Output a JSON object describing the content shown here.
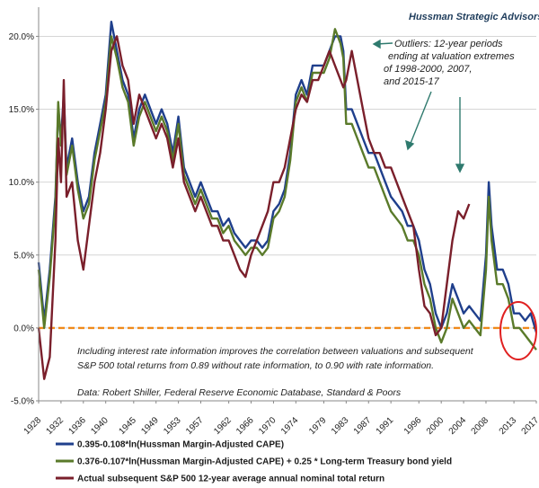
{
  "chart_data": {
    "type": "line",
    "title": "",
    "source_label": "Hussman Strategic Advisors",
    "xlabel": "",
    "ylabel": "",
    "xlim": [
      1928,
      2017
    ],
    "ylim": [
      -0.05,
      0.22
    ],
    "yticks": [
      {
        "value": -0.05,
        "label": "-5.0%"
      },
      {
        "value": 0.0,
        "label": "0.0%"
      },
      {
        "value": 0.05,
        "label": "5.0%"
      },
      {
        "value": 0.1,
        "label": "10.0%"
      },
      {
        "value": 0.15,
        "label": "15.0%"
      },
      {
        "value": 0.2,
        "label": "20.0%"
      }
    ],
    "xticks": [
      {
        "value": 1928,
        "label": "1928"
      },
      {
        "value": 1932,
        "label": "1932"
      },
      {
        "value": 1936,
        "label": "1936"
      },
      {
        "value": 1940,
        "label": "1940"
      },
      {
        "value": 1945,
        "label": "1945"
      },
      {
        "value": 1949,
        "label": "1949"
      },
      {
        "value": 1953,
        "label": "1953"
      },
      {
        "value": 1957,
        "label": "1957"
      },
      {
        "value": 1962,
        "label": "1962"
      },
      {
        "value": 1966,
        "label": "1966"
      },
      {
        "value": 1970,
        "label": "1970"
      },
      {
        "value": 1974,
        "label": "1974"
      },
      {
        "value": 1979,
        "label": "1979"
      },
      {
        "value": 1983,
        "label": "1983"
      },
      {
        "value": 1987,
        "label": "1987"
      },
      {
        "value": 1991,
        "label": "1991"
      },
      {
        "value": 1996,
        "label": "1996"
      },
      {
        "value": 2000,
        "label": "2000"
      },
      {
        "value": 2004,
        "label": "2004"
      },
      {
        "value": 2008,
        "label": "2008"
      },
      {
        "value": 2013,
        "label": "2013"
      },
      {
        "value": 2017,
        "label": "2017"
      }
    ],
    "grid": "horizontal",
    "reference_line": {
      "value": 0.0,
      "color": "#f08a1a",
      "style": "dashed"
    },
    "legend": "bottom",
    "series": [
      {
        "name": "0.395-0.108*ln(Hussman Margin-Adjusted CAPE)",
        "color": "#1f3f8c",
        "x": [
          1928,
          1929,
          1930,
          1931,
          1931.5,
          1932,
          1932.5,
          1933,
          1934,
          1935,
          1936,
          1937,
          1938,
          1939,
          1940,
          1941,
          1942,
          1942.5,
          1943,
          1944,
          1945,
          1946,
          1947,
          1948,
          1949,
          1950,
          1951,
          1952,
          1953,
          1954,
          1955,
          1956,
          1957,
          1958,
          1959,
          1960,
          1961,
          1962,
          1963,
          1964,
          1965,
          1966,
          1967,
          1968,
          1969,
          1970,
          1971,
          1972,
          1973,
          1974,
          1975,
          1976,
          1977,
          1978,
          1979,
          1980,
          1981,
          1982,
          1982.5,
          1983,
          1984,
          1985,
          1986,
          1987,
          1988,
          1989,
          1990,
          1991,
          1992,
          1993,
          1994,
          1995,
          1996,
          1997,
          1998,
          1999,
          2000,
          2001,
          2002,
          2003,
          2004,
          2005,
          2006,
          2007,
          2008,
          2008.5,
          2009,
          2010,
          2011,
          2012,
          2013,
          2014,
          2015,
          2016,
          2017
        ],
        "y": [
          0.045,
          0.005,
          0.04,
          0.09,
          0.15,
          0.13,
          0.16,
          0.11,
          0.13,
          0.1,
          0.08,
          0.09,
          0.12,
          0.14,
          0.16,
          0.21,
          0.19,
          0.18,
          0.17,
          0.16,
          0.13,
          0.15,
          0.16,
          0.15,
          0.14,
          0.15,
          0.14,
          0.12,
          0.145,
          0.11,
          0.1,
          0.09,
          0.1,
          0.09,
          0.08,
          0.08,
          0.07,
          0.075,
          0.065,
          0.06,
          0.055,
          0.06,
          0.06,
          0.055,
          0.06,
          0.08,
          0.085,
          0.095,
          0.12,
          0.16,
          0.17,
          0.16,
          0.18,
          0.18,
          0.18,
          0.19,
          0.2,
          0.2,
          0.19,
          0.15,
          0.15,
          0.14,
          0.13,
          0.12,
          0.12,
          0.11,
          0.1,
          0.09,
          0.085,
          0.08,
          0.07,
          0.07,
          0.06,
          0.04,
          0.03,
          0.01,
          0.0,
          0.01,
          0.03,
          0.02,
          0.01,
          0.015,
          0.01,
          0.005,
          0.05,
          0.1,
          0.07,
          0.04,
          0.04,
          0.03,
          0.01,
          0.01,
          0.005,
          0.01,
          -0.003
        ]
      },
      {
        "name": "0.376-0.107*ln(Hussman Margin-Adjusted CAPE) + 0.25 * Long-term Treasury bond yield",
        "color": "#5a7a2a",
        "x": [
          1928,
          1929,
          1930,
          1931,
          1931.5,
          1932,
          1932.5,
          1933,
          1934,
          1935,
          1936,
          1937,
          1938,
          1939,
          1940,
          1941,
          1942,
          1942.5,
          1943,
          1944,
          1945,
          1946,
          1947,
          1948,
          1949,
          1950,
          1951,
          1952,
          1953,
          1954,
          1955,
          1956,
          1957,
          1958,
          1959,
          1960,
          1961,
          1962,
          1963,
          1964,
          1965,
          1966,
          1967,
          1968,
          1969,
          1970,
          1971,
          1972,
          1973,
          1974,
          1975,
          1976,
          1977,
          1978,
          1979,
          1980,
          1981,
          1982,
          1982.5,
          1983,
          1984,
          1985,
          1986,
          1987,
          1988,
          1989,
          1990,
          1991,
          1992,
          1993,
          1994,
          1995,
          1996,
          1997,
          1998,
          1999,
          2000,
          2001,
          2002,
          2003,
          2004,
          2005,
          2006,
          2007,
          2008,
          2008.5,
          2009,
          2010,
          2011,
          2012,
          2013,
          2014,
          2015,
          2016,
          2017
        ],
        "y": [
          0.04,
          0.0,
          0.035,
          0.085,
          0.155,
          0.125,
          0.155,
          0.105,
          0.125,
          0.095,
          0.075,
          0.085,
          0.115,
          0.135,
          0.155,
          0.2,
          0.185,
          0.175,
          0.165,
          0.155,
          0.125,
          0.145,
          0.155,
          0.145,
          0.135,
          0.145,
          0.135,
          0.115,
          0.14,
          0.105,
          0.095,
          0.085,
          0.095,
          0.085,
          0.075,
          0.075,
          0.065,
          0.07,
          0.06,
          0.055,
          0.05,
          0.055,
          0.055,
          0.05,
          0.055,
          0.075,
          0.08,
          0.09,
          0.115,
          0.155,
          0.165,
          0.155,
          0.175,
          0.175,
          0.175,
          0.185,
          0.205,
          0.195,
          0.185,
          0.14,
          0.14,
          0.13,
          0.12,
          0.11,
          0.11,
          0.1,
          0.09,
          0.08,
          0.075,
          0.07,
          0.06,
          0.06,
          0.05,
          0.03,
          0.02,
          0.0,
          -0.01,
          0.0,
          0.02,
          0.01,
          0.0,
          0.005,
          0.0,
          -0.005,
          0.04,
          0.09,
          0.06,
          0.03,
          0.03,
          0.02,
          0.0,
          0.0,
          -0.005,
          -0.01,
          -0.015
        ]
      },
      {
        "name": "Actual subsequent S&P 500 12-year average annual nominal total return",
        "color": "#7a1f2b",
        "x": [
          1928,
          1929,
          1930,
          1931,
          1931.5,
          1932,
          1932.5,
          1933,
          1934,
          1935,
          1936,
          1937,
          1938,
          1939,
          1940,
          1941,
          1942,
          1942.5,
          1943,
          1944,
          1945,
          1946,
          1947,
          1948,
          1949,
          1950,
          1951,
          1952,
          1953,
          1954,
          1955,
          1956,
          1957,
          1958,
          1959,
          1960,
          1961,
          1962,
          1963,
          1964,
          1965,
          1966,
          1967,
          1968,
          1969,
          1970,
          1971,
          1972,
          1973,
          1974,
          1975,
          1976,
          1977,
          1978,
          1979,
          1980,
          1981,
          1982,
          1982.5,
          1983,
          1984,
          1985,
          1986,
          1987,
          1988,
          1989,
          1990,
          1991,
          1992,
          1993,
          1994,
          1995,
          1996,
          1997,
          1998,
          1999,
          2000,
          2001,
          2002,
          2003,
          2004,
          2005
        ],
        "y": [
          0.0,
          -0.035,
          -0.02,
          0.06,
          0.13,
          0.1,
          0.17,
          0.09,
          0.1,
          0.06,
          0.04,
          0.07,
          0.1,
          0.12,
          0.15,
          0.19,
          0.2,
          0.19,
          0.18,
          0.17,
          0.14,
          0.16,
          0.15,
          0.14,
          0.13,
          0.14,
          0.13,
          0.11,
          0.13,
          0.1,
          0.09,
          0.08,
          0.09,
          0.08,
          0.07,
          0.07,
          0.06,
          0.06,
          0.05,
          0.04,
          0.035,
          0.05,
          0.06,
          0.07,
          0.08,
          0.1,
          0.1,
          0.11,
          0.13,
          0.15,
          0.16,
          0.155,
          0.17,
          0.17,
          0.18,
          0.19,
          0.18,
          0.17,
          0.165,
          0.17,
          0.19,
          0.17,
          0.15,
          0.13,
          0.12,
          0.12,
          0.11,
          0.11,
          0.1,
          0.09,
          0.08,
          0.07,
          0.04,
          0.015,
          0.01,
          -0.005,
          0.0,
          0.03,
          0.06,
          0.08,
          0.075,
          0.085
        ]
      }
    ],
    "annotations": [
      {
        "text_lines": [
          "Outliers: 12-year periods",
          "ending at valuation extremes",
          "of  1998-2000,  2007,",
          "and 2015-17"
        ]
      },
      {
        "text_lines": [
          "Including interest rate information improves  the correlation between valuations and subsequent",
          "S&P 500 total returns from 0.89 without rate information, to 0.90 with rate information."
        ]
      },
      {
        "text_lines": [
          "Data:  Robert Shiller, Federal Reserve Economic Database, Standard  & Poors"
        ]
      }
    ]
  }
}
